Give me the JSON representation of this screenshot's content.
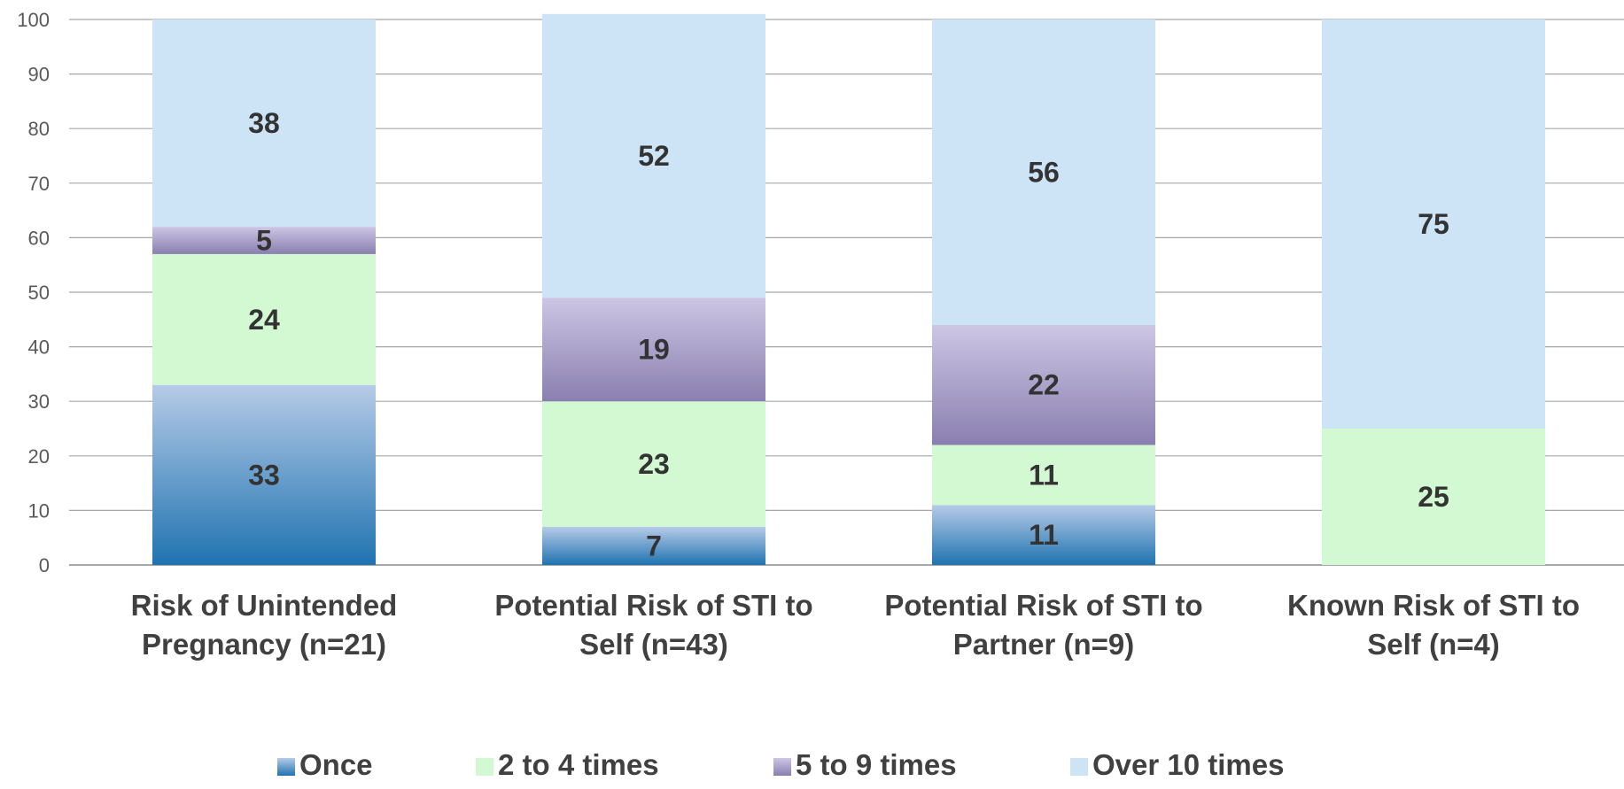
{
  "chart_data": {
    "type": "bar",
    "stacked": true,
    "title": "",
    "xlabel": "",
    "ylabel": "",
    "ylim": [
      0,
      100
    ],
    "yticks": [
      0,
      10,
      20,
      30,
      40,
      50,
      60,
      70,
      80,
      90,
      100
    ],
    "grid": true,
    "legend_position": "bottom",
    "categories": [
      [
        "Risk of Unintended",
        "Pregnancy (n=21)"
      ],
      [
        "Potential Risk of STI to",
        "Self (n=43)"
      ],
      [
        "Potential Risk of STI to",
        "Partner (n=9)"
      ],
      [
        "Known Risk of STI to",
        "Self (n=4)"
      ]
    ],
    "series": [
      {
        "name": "Once",
        "values": [
          33,
          7,
          11,
          0
        ],
        "color": "#1f73b0",
        "color_light": "#b6cbe8"
      },
      {
        "name": "2 to 4 times",
        "values": [
          24,
          23,
          11,
          25
        ],
        "color": "#d2f9d2",
        "color_light": "#d2f9d2"
      },
      {
        "name": "5 to 9 times",
        "values": [
          5,
          19,
          22,
          0
        ],
        "color": "#8a7fb0",
        "color_light": "#cdc6e4"
      },
      {
        "name": "Over 10 times",
        "values": [
          38,
          52,
          56,
          75
        ],
        "color": "#cde3f6",
        "color_light": "#cde3f6"
      }
    ]
  }
}
